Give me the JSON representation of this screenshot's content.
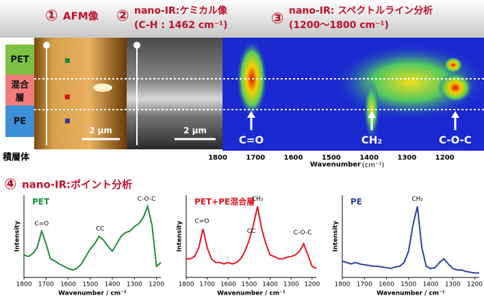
{
  "header": {
    "panels": [
      {
        "number": "①",
        "title": "AFM像"
      },
      {
        "number": "②",
        "title": "nano-IR:ケミカル像",
        "subtitle": "(C-H : 1462 cm⁻¹)"
      },
      {
        "number": "③",
        "title": "nano-IR: スペクトルライン分析",
        "subtitle": "(1200〜1800 cm⁻¹)"
      }
    ]
  },
  "layers": [
    "PET",
    "混合層",
    "PE"
  ],
  "stack_label": "積層体",
  "scale_bars": [
    "2 µm",
    "2 µm"
  ],
  "line_map": {
    "xlim": [
      1800,
      1100
    ],
    "xticks": [
      1800,
      1700,
      1600,
      1500,
      1400,
      1300,
      1200
    ],
    "xlabel": "Wavenumber",
    "xunit": "(cm⁻¹)",
    "peaks": [
      "C=O",
      "CH₂",
      "C-O-C"
    ]
  },
  "section4": {
    "number": "④",
    "title": "nano-IR:ポイント分析"
  },
  "chart_data": [
    {
      "type": "line",
      "ylabel": "Intensity",
      "xlabel": "Wavenumber / cm⁻¹",
      "x": [
        1800,
        1780,
        1760,
        1740,
        1720,
        1700,
        1680,
        1660,
        1640,
        1620,
        1600,
        1580,
        1560,
        1540,
        1520,
        1500,
        1480,
        1460,
        1440,
        1420,
        1400,
        1380,
        1360,
        1340,
        1320,
        1300,
        1280,
        1260,
        1240,
        1220,
        1200,
        1180
      ],
      "series": [
        {
          "name": "PET",
          "color": "#1a8a3a",
          "values": [
            0.3,
            0.28,
            0.32,
            0.4,
            0.62,
            0.45,
            0.25,
            0.22,
            0.18,
            0.15,
            0.12,
            0.1,
            0.12,
            0.18,
            0.28,
            0.38,
            0.45,
            0.55,
            0.5,
            0.42,
            0.35,
            0.45,
            0.55,
            0.6,
            0.62,
            0.68,
            0.72,
            0.8,
            0.95,
            0.7,
            0.15,
            0.2
          ]
        }
      ],
      "xlim": [
        1800,
        1180
      ],
      "xticks": [
        1800,
        1700,
        1600,
        1500,
        1400,
        1300,
        1200
      ],
      "ylim": [
        0,
        1.1
      ],
      "annotations": [
        "C=O",
        "CC",
        "C-O-C"
      ]
    },
    {
      "type": "line",
      "ylabel": "Intensity",
      "xlabel": "Wavenumber / cm⁻¹",
      "x": [
        1800,
        1780,
        1760,
        1740,
        1720,
        1700,
        1680,
        1660,
        1640,
        1620,
        1600,
        1580,
        1560,
        1540,
        1520,
        1500,
        1480,
        1460,
        1440,
        1420,
        1400,
        1380,
        1360,
        1340,
        1320,
        1300,
        1280,
        1260,
        1240,
        1220,
        1200,
        1180
      ],
      "series": [
        {
          "name": "PET+PE混合層",
          "color": "#e0141e",
          "values": [
            0.25,
            0.25,
            0.28,
            0.4,
            0.65,
            0.4,
            0.25,
            0.2,
            0.2,
            0.18,
            0.2,
            0.18,
            0.2,
            0.25,
            0.35,
            0.5,
            0.7,
            0.95,
            0.65,
            0.45,
            0.3,
            0.28,
            0.25,
            0.25,
            0.27,
            0.28,
            0.3,
            0.35,
            0.45,
            0.3,
            0.15,
            0.12
          ]
        }
      ],
      "xlim": [
        1800,
        1180
      ],
      "xticks": [
        1800,
        1700,
        1600,
        1500,
        1400,
        1300,
        1200
      ],
      "ylim": [
        0,
        1.1
      ],
      "annotations": [
        "C=O",
        "CC",
        "CH₂",
        "C-O-C"
      ]
    },
    {
      "type": "line",
      "ylabel": "Intensity",
      "xlabel": "Wavenumber / cm⁻¹",
      "x": [
        1800,
        1780,
        1760,
        1740,
        1720,
        1700,
        1680,
        1660,
        1640,
        1620,
        1600,
        1580,
        1560,
        1540,
        1520,
        1500,
        1480,
        1460,
        1440,
        1420,
        1400,
        1380,
        1360,
        1340,
        1320,
        1300,
        1280,
        1260,
        1240,
        1220,
        1200,
        1180
      ],
      "series": [
        {
          "name": "PE",
          "color": "#2a3f9a",
          "values": [
            0.22,
            0.2,
            0.18,
            0.2,
            0.18,
            0.17,
            0.16,
            0.15,
            0.15,
            0.14,
            0.13,
            0.12,
            0.14,
            0.15,
            0.2,
            0.35,
            0.7,
            0.95,
            0.4,
            0.15,
            0.12,
            0.13,
            0.2,
            0.25,
            0.18,
            0.12,
            0.1,
            0.1,
            0.08,
            0.07,
            0.06,
            0.06
          ]
        }
      ],
      "xlim": [
        1800,
        1180
      ],
      "xticks": [
        1800,
        1700,
        1600,
        1500,
        1400,
        1300,
        1200
      ],
      "ylim": [
        0,
        1.1
      ],
      "annotations": [
        "CH₂"
      ]
    }
  ]
}
